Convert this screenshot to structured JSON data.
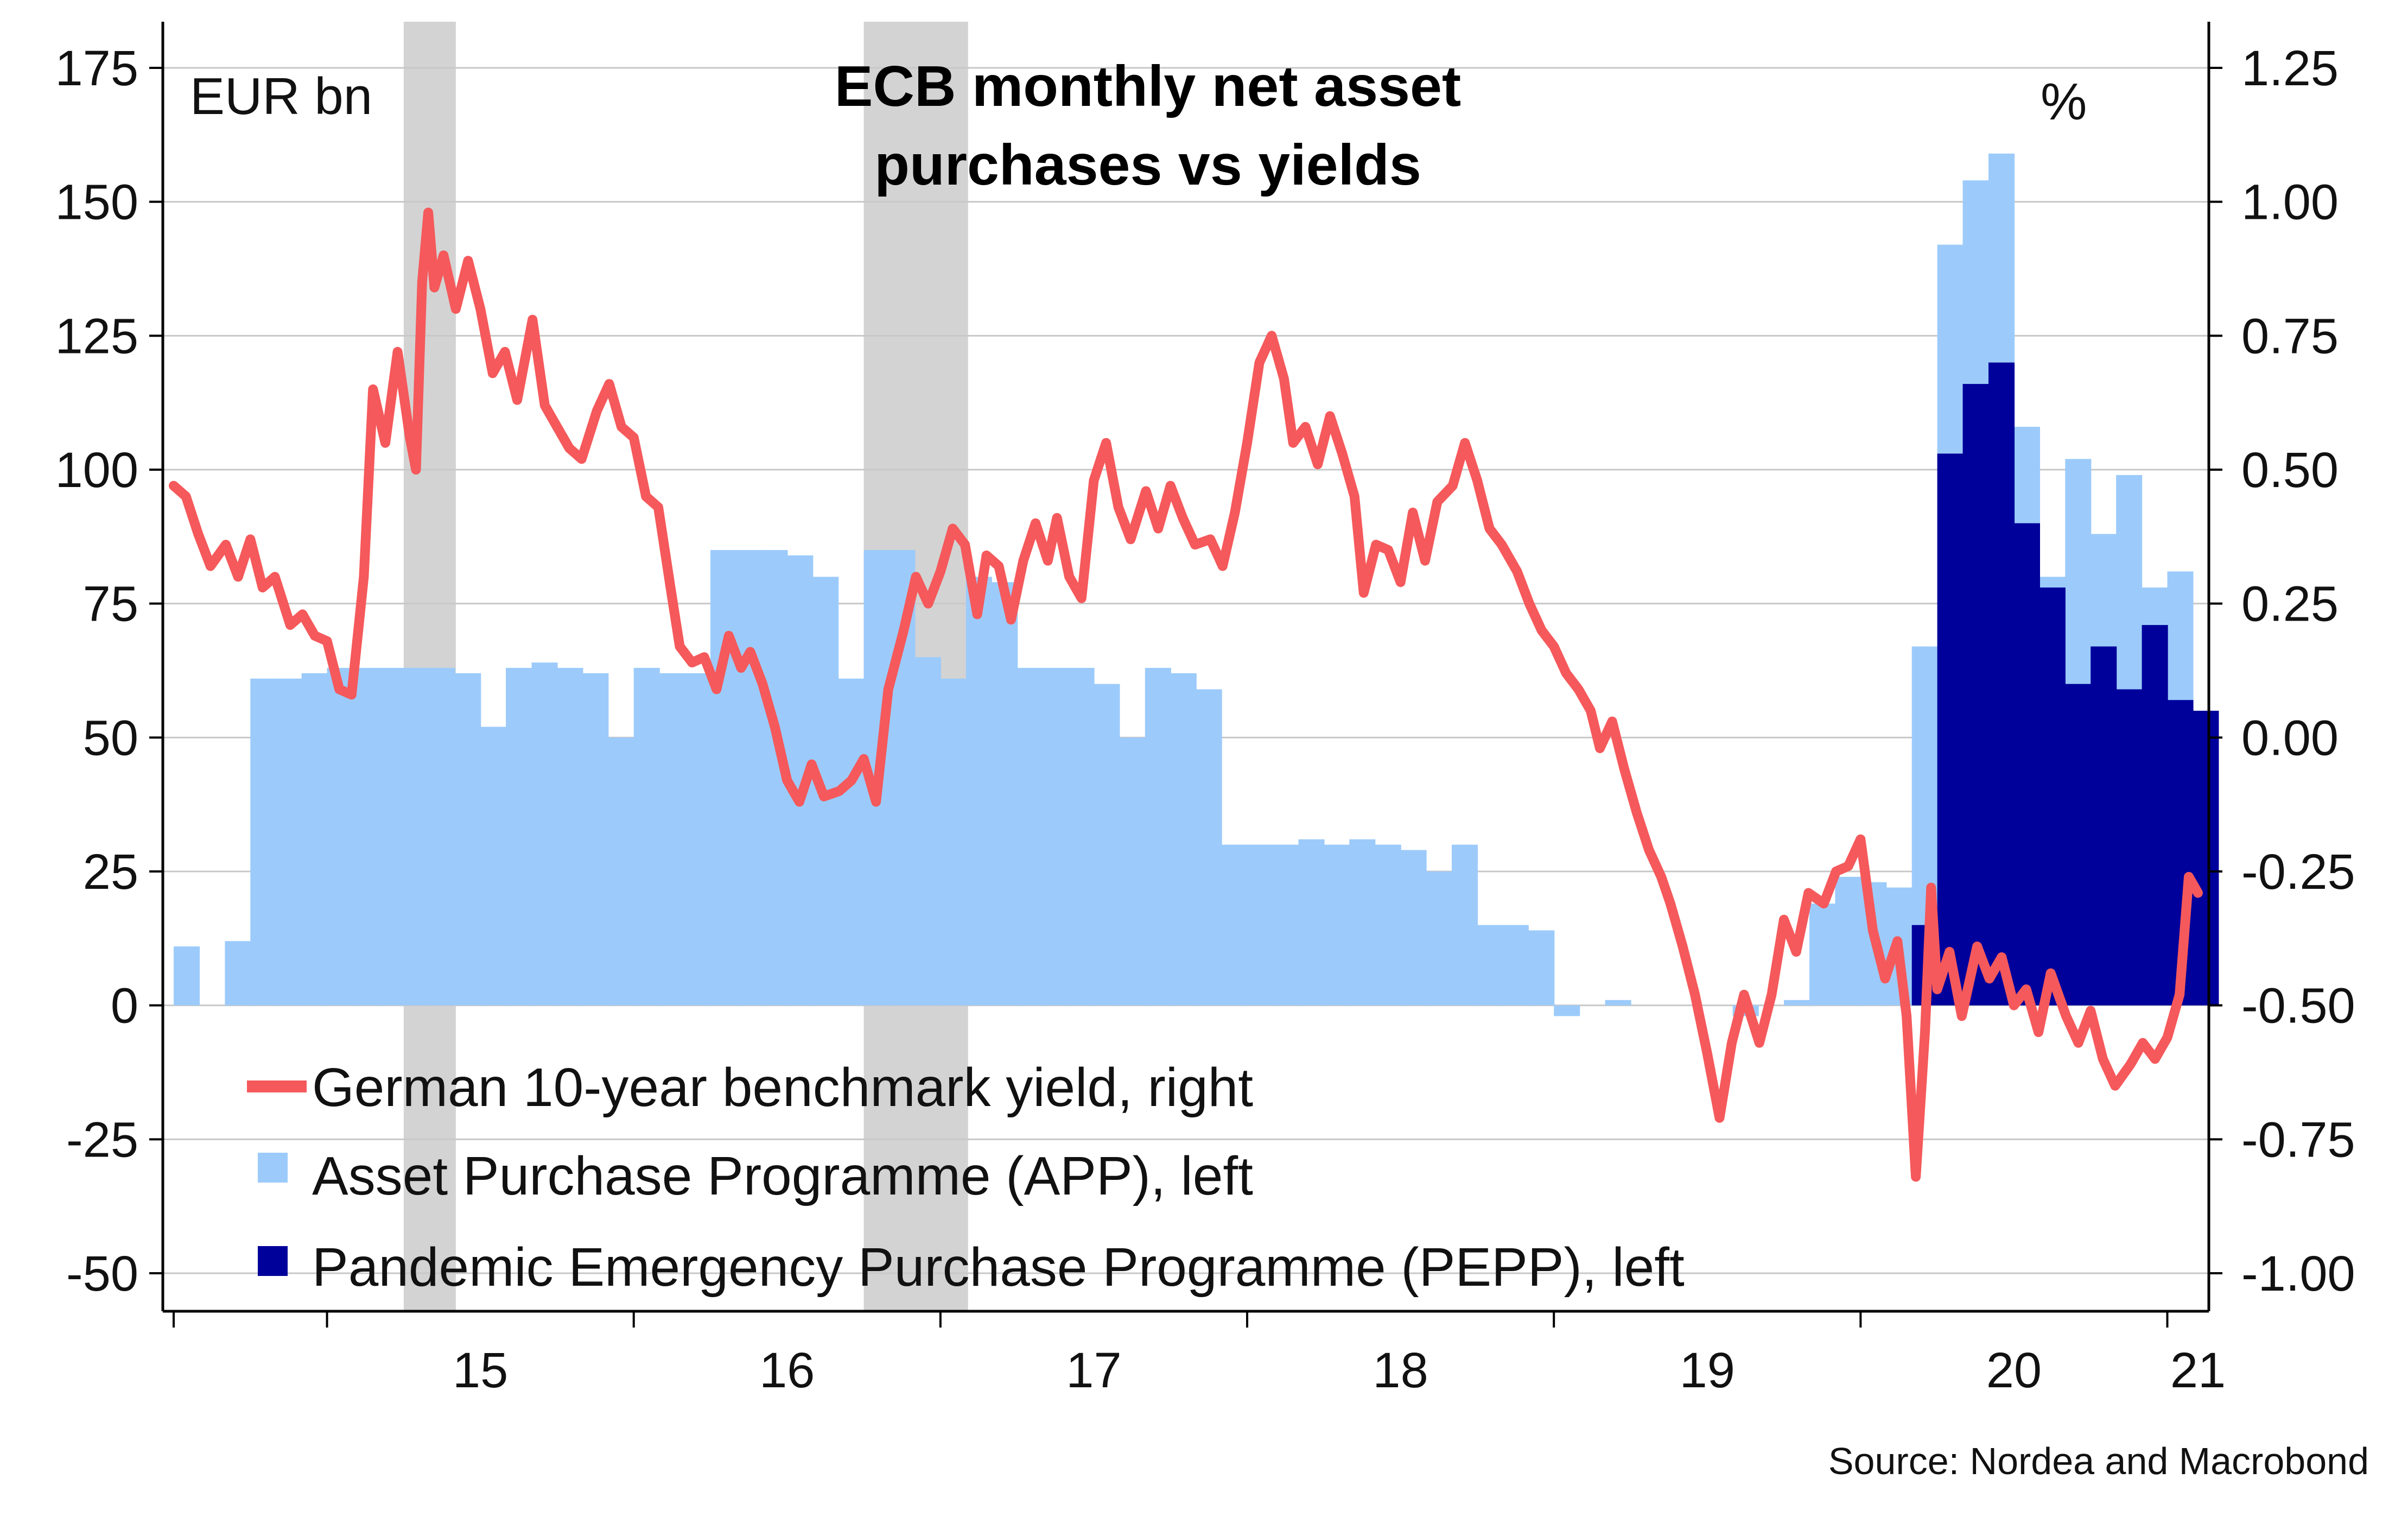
{
  "chart_data": {
    "type": "bar",
    "title": "ECB monthly net asset purchases vs yields",
    "title_lines": [
      "ECB monthly net asset",
      "purchases vs yields"
    ],
    "left_unit": "EUR bn",
    "right_unit": "%",
    "source": "Source: Nordea and Macrobond",
    "y_left": {
      "min": -50,
      "max": 175,
      "ticks": [
        -50,
        -25,
        0,
        25,
        50,
        75,
        100,
        125,
        150,
        175
      ],
      "tick_labels": [
        "-50",
        "-25",
        "0",
        "25",
        "50",
        "75",
        "100",
        "125",
        "150",
        "175"
      ]
    },
    "y_right": {
      "min": -1.0,
      "max": 1.25,
      "ticks": [
        -1.0,
        -0.75,
        -0.5,
        -0.25,
        0.0,
        0.25,
        0.5,
        0.75,
        1.0,
        1.25
      ],
      "tick_labels": [
        "-1.00",
        "-0.75",
        "-0.50",
        "-0.25",
        "0.00",
        "0.25",
        "0.50",
        "0.75",
        "1.00",
        "1.25"
      ]
    },
    "x": {
      "min": 2014.5,
      "max": 2021.1,
      "year_boundaries": [
        2015,
        2016,
        2017,
        2018,
        2019,
        2020,
        2021
      ],
      "tick_labels": [
        "15",
        "16",
        "17",
        "18",
        "19",
        "20",
        "21"
      ],
      "label_positions": [
        2015.5,
        2016.5,
        2017.5,
        2018.5,
        2019.5,
        2020.5,
        2021.1
      ]
    },
    "grid": true,
    "legend_position": "bottom-left",
    "shaded_periods": [
      [
        2015.25,
        2015.42
      ],
      [
        2016.75,
        2017.09
      ]
    ],
    "colors": {
      "app": "#9ccbfb",
      "pepp": "#00009b",
      "yield": "#f5595b",
      "shade": "#d3d3d3",
      "grid": "#c8c8c8"
    },
    "series": [
      {
        "name": "German 10-year benchmark yield, right",
        "type": "line",
        "axis": "right",
        "points": [
          [
            2014.5,
            0.47
          ],
          [
            2014.54,
            0.45
          ],
          [
            2014.58,
            0.38
          ],
          [
            2014.62,
            0.32
          ],
          [
            2014.67,
            0.36
          ],
          [
            2014.71,
            0.3
          ],
          [
            2014.75,
            0.37
          ],
          [
            2014.79,
            0.28
          ],
          [
            2014.83,
            0.3
          ],
          [
            2014.88,
            0.21
          ],
          [
            2014.92,
            0.23
          ],
          [
            2014.96,
            0.19
          ],
          [
            2015.0,
            0.18
          ],
          [
            2015.04,
            0.09
          ],
          [
            2015.08,
            0.08
          ],
          [
            2015.12,
            0.3
          ],
          [
            2015.15,
            0.65
          ],
          [
            2015.19,
            0.55
          ],
          [
            2015.23,
            0.72
          ],
          [
            2015.27,
            0.56
          ],
          [
            2015.29,
            0.5
          ],
          [
            2015.31,
            0.85
          ],
          [
            2015.33,
            0.98
          ],
          [
            2015.35,
            0.84
          ],
          [
            2015.38,
            0.9
          ],
          [
            2015.42,
            0.8
          ],
          [
            2015.46,
            0.89
          ],
          [
            2015.5,
            0.8
          ],
          [
            2015.54,
            0.68
          ],
          [
            2015.58,
            0.72
          ],
          [
            2015.62,
            0.63
          ],
          [
            2015.67,
            0.78
          ],
          [
            2015.71,
            0.62
          ],
          [
            2015.75,
            0.58
          ],
          [
            2015.79,
            0.54
          ],
          [
            2015.83,
            0.52
          ],
          [
            2015.88,
            0.61
          ],
          [
            2015.92,
            0.66
          ],
          [
            2015.96,
            0.58
          ],
          [
            2016.0,
            0.56
          ],
          [
            2016.04,
            0.45
          ],
          [
            2016.08,
            0.43
          ],
          [
            2016.12,
            0.28
          ],
          [
            2016.15,
            0.17
          ],
          [
            2016.19,
            0.14
          ],
          [
            2016.23,
            0.15
          ],
          [
            2016.27,
            0.09
          ],
          [
            2016.31,
            0.19
          ],
          [
            2016.35,
            0.13
          ],
          [
            2016.38,
            0.16
          ],
          [
            2016.42,
            0.1
          ],
          [
            2016.46,
            0.02
          ],
          [
            2016.5,
            -0.08
          ],
          [
            2016.54,
            -0.12
          ],
          [
            2016.58,
            -0.05
          ],
          [
            2016.62,
            -0.11
          ],
          [
            2016.67,
            -0.1
          ],
          [
            2016.71,
            -0.08
          ],
          [
            2016.75,
            -0.04
          ],
          [
            2016.79,
            -0.12
          ],
          [
            2016.83,
            0.09
          ],
          [
            2016.88,
            0.2
          ],
          [
            2016.92,
            0.3
          ],
          [
            2016.96,
            0.25
          ],
          [
            2017.0,
            0.31
          ],
          [
            2017.04,
            0.39
          ],
          [
            2017.08,
            0.36
          ],
          [
            2017.12,
            0.23
          ],
          [
            2017.15,
            0.34
          ],
          [
            2017.19,
            0.32
          ],
          [
            2017.23,
            0.22
          ],
          [
            2017.27,
            0.33
          ],
          [
            2017.31,
            0.4
          ],
          [
            2017.35,
            0.33
          ],
          [
            2017.38,
            0.41
          ],
          [
            2017.42,
            0.3
          ],
          [
            2017.46,
            0.26
          ],
          [
            2017.5,
            0.48
          ],
          [
            2017.54,
            0.55
          ],
          [
            2017.58,
            0.43
          ],
          [
            2017.62,
            0.37
          ],
          [
            2017.67,
            0.46
          ],
          [
            2017.71,
            0.39
          ],
          [
            2017.75,
            0.47
          ],
          [
            2017.79,
            0.41
          ],
          [
            2017.83,
            0.36
          ],
          [
            2017.88,
            0.37
          ],
          [
            2017.92,
            0.32
          ],
          [
            2017.96,
            0.42
          ],
          [
            2018.0,
            0.55
          ],
          [
            2018.04,
            0.7
          ],
          [
            2018.08,
            0.75
          ],
          [
            2018.12,
            0.67
          ],
          [
            2018.15,
            0.55
          ],
          [
            2018.19,
            0.58
          ],
          [
            2018.23,
            0.51
          ],
          [
            2018.27,
            0.6
          ],
          [
            2018.31,
            0.53
          ],
          [
            2018.35,
            0.45
          ],
          [
            2018.38,
            0.27
          ],
          [
            2018.42,
            0.36
          ],
          [
            2018.46,
            0.35
          ],
          [
            2018.5,
            0.29
          ],
          [
            2018.54,
            0.42
          ],
          [
            2018.58,
            0.33
          ],
          [
            2018.62,
            0.44
          ],
          [
            2018.67,
            0.47
          ],
          [
            2018.71,
            0.55
          ],
          [
            2018.75,
            0.48
          ],
          [
            2018.79,
            0.39
          ],
          [
            2018.83,
            0.36
          ],
          [
            2018.88,
            0.31
          ],
          [
            2018.92,
            0.25
          ],
          [
            2018.96,
            0.2
          ],
          [
            2019.0,
            0.17
          ],
          [
            2019.04,
            0.12
          ],
          [
            2019.08,
            0.09
          ],
          [
            2019.12,
            0.05
          ],
          [
            2019.15,
            -0.02
          ],
          [
            2019.19,
            0.03
          ],
          [
            2019.23,
            -0.06
          ],
          [
            2019.27,
            -0.14
          ],
          [
            2019.31,
            -0.21
          ],
          [
            2019.35,
            -0.26
          ],
          [
            2019.38,
            -0.31
          ],
          [
            2019.42,
            -0.39
          ],
          [
            2019.46,
            -0.48
          ],
          [
            2019.5,
            -0.59
          ],
          [
            2019.54,
            -0.71
          ],
          [
            2019.58,
            -0.57
          ],
          [
            2019.62,
            -0.48
          ],
          [
            2019.67,
            -0.57
          ],
          [
            2019.71,
            -0.48
          ],
          [
            2019.75,
            -0.34
          ],
          [
            2019.79,
            -0.4
          ],
          [
            2019.83,
            -0.29
          ],
          [
            2019.88,
            -0.31
          ],
          [
            2019.92,
            -0.25
          ],
          [
            2019.96,
            -0.24
          ],
          [
            2020.0,
            -0.19
          ],
          [
            2020.04,
            -0.36
          ],
          [
            2020.08,
            -0.45
          ],
          [
            2020.12,
            -0.38
          ],
          [
            2020.15,
            -0.52
          ],
          [
            2020.18,
            -0.82
          ],
          [
            2020.21,
            -0.55
          ],
          [
            2020.23,
            -0.28
          ],
          [
            2020.25,
            -0.47
          ],
          [
            2020.29,
            -0.4
          ],
          [
            2020.33,
            -0.52
          ],
          [
            2020.38,
            -0.39
          ],
          [
            2020.42,
            -0.45
          ],
          [
            2020.46,
            -0.41
          ],
          [
            2020.5,
            -0.5
          ],
          [
            2020.54,
            -0.47
          ],
          [
            2020.58,
            -0.55
          ],
          [
            2020.62,
            -0.44
          ],
          [
            2020.67,
            -0.52
          ],
          [
            2020.71,
            -0.57
          ],
          [
            2020.75,
            -0.51
          ],
          [
            2020.79,
            -0.6
          ],
          [
            2020.83,
            -0.65
          ],
          [
            2020.88,
            -0.61
          ],
          [
            2020.92,
            -0.57
          ],
          [
            2020.96,
            -0.6
          ],
          [
            2021.0,
            -0.56
          ],
          [
            2021.04,
            -0.48
          ],
          [
            2021.07,
            -0.26
          ],
          [
            2021.1,
            -0.29
          ]
        ]
      },
      {
        "name": "Asset Purchase Programme (APP), left",
        "type": "bar",
        "axis": "left",
        "months": [
          [
            2014.5,
            11
          ],
          [
            2014.667,
            12
          ],
          [
            2014.75,
            61
          ],
          [
            2014.833,
            61
          ],
          [
            2014.917,
            62
          ],
          [
            2015.0,
            63
          ],
          [
            2015.083,
            63
          ],
          [
            2015.167,
            63
          ],
          [
            2015.25,
            63
          ],
          [
            2015.333,
            63
          ],
          [
            2015.417,
            62
          ],
          [
            2015.5,
            52
          ],
          [
            2015.583,
            63
          ],
          [
            2015.667,
            64
          ],
          [
            2015.75,
            63
          ],
          [
            2015.833,
            62
          ],
          [
            2015.917,
            50
          ],
          [
            2016.0,
            63
          ],
          [
            2016.083,
            62
          ],
          [
            2016.167,
            62
          ],
          [
            2016.25,
            85
          ],
          [
            2016.333,
            85
          ],
          [
            2016.417,
            85
          ],
          [
            2016.5,
            84
          ],
          [
            2016.583,
            80
          ],
          [
            2016.667,
            61
          ],
          [
            2016.75,
            85
          ],
          [
            2016.833,
            85
          ],
          [
            2016.917,
            65
          ],
          [
            2017.0,
            61
          ],
          [
            2017.083,
            80
          ],
          [
            2017.167,
            79
          ],
          [
            2017.25,
            63
          ],
          [
            2017.333,
            63
          ],
          [
            2017.417,
            63
          ],
          [
            2017.5,
            60
          ],
          [
            2017.583,
            50
          ],
          [
            2017.667,
            63
          ],
          [
            2017.75,
            62
          ],
          [
            2017.833,
            59
          ],
          [
            2017.917,
            30
          ],
          [
            2018.0,
            30
          ],
          [
            2018.083,
            30
          ],
          [
            2018.167,
            31
          ],
          [
            2018.25,
            30
          ],
          [
            2018.333,
            31
          ],
          [
            2018.417,
            30
          ],
          [
            2018.5,
            29
          ],
          [
            2018.583,
            25
          ],
          [
            2018.667,
            30
          ],
          [
            2018.75,
            15
          ],
          [
            2018.833,
            15
          ],
          [
            2018.917,
            14
          ],
          [
            2019.0,
            -2
          ],
          [
            2019.083,
            0
          ],
          [
            2019.167,
            1
          ],
          [
            2019.25,
            0
          ],
          [
            2019.333,
            0
          ],
          [
            2019.417,
            0
          ],
          [
            2019.5,
            0
          ],
          [
            2019.583,
            -2
          ],
          [
            2019.667,
            0
          ],
          [
            2019.75,
            1
          ],
          [
            2019.833,
            19
          ],
          [
            2019.917,
            24
          ],
          [
            2020.0,
            23
          ],
          [
            2020.083,
            22
          ],
          [
            2020.167,
            67
          ],
          [
            2020.25,
            142
          ],
          [
            2020.333,
            154
          ],
          [
            2020.417,
            159
          ],
          [
            2020.5,
            108
          ],
          [
            2020.583,
            80
          ],
          [
            2020.667,
            102
          ],
          [
            2020.75,
            88
          ],
          [
            2020.833,
            99
          ],
          [
            2020.917,
            78
          ],
          [
            2021.0,
            81
          ]
        ],
        "month_width": 0.0833
      },
      {
        "name": "Pandemic Emergency Purchase Programme (PEPP), left",
        "type": "bar",
        "axis": "left",
        "months": [
          [
            2020.167,
            15
          ],
          [
            2020.25,
            103
          ],
          [
            2020.333,
            116
          ],
          [
            2020.417,
            120
          ],
          [
            2020.5,
            90
          ],
          [
            2020.583,
            78
          ],
          [
            2020.667,
            60
          ],
          [
            2020.75,
            67
          ],
          [
            2020.833,
            59
          ],
          [
            2020.917,
            71
          ],
          [
            2021.0,
            57
          ],
          [
            2021.083,
            55
          ]
        ],
        "month_width": 0.0833
      }
    ]
  }
}
